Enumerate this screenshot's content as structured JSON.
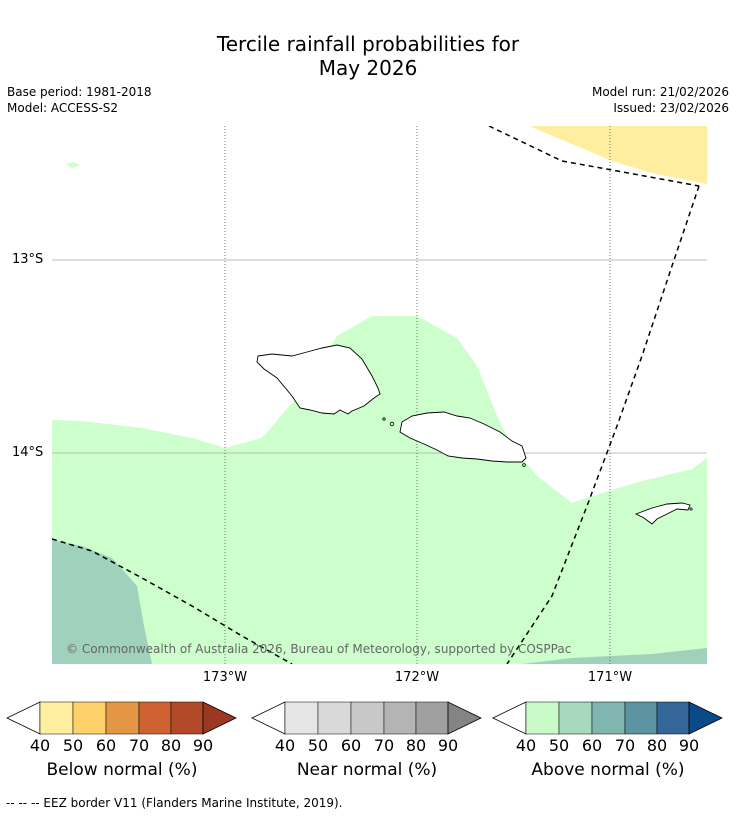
{
  "title_line1": "Tercile rainfall probabilities for",
  "title_line2": "May 2026",
  "base_period": "Base period: 1981-2018",
  "model": "Model: ACCESS-S2",
  "model_run": "Model run: 21/02/2026",
  "issued": "Issued: 23/02/2026",
  "copyright": "© Commonwealth of Australia 2026, Bureau of Meteorology, supported by COSPPac",
  "lon_labels": [
    "173°W",
    "172°W",
    "171°W"
  ],
  "lat_labels": [
    "13°S",
    "14°S"
  ],
  "colorbars": [
    {
      "title": "Below normal (%)",
      "ticks": [
        "40",
        "50",
        "60",
        "70",
        "80",
        "90"
      ],
      "colors": [
        "#ffffff",
        "#ffeda0",
        "#fed16a",
        "#e39646",
        "#cf6231",
        "#b24a29",
        "#9a3822"
      ]
    },
    {
      "title": "Near normal (%)",
      "ticks": [
        "40",
        "50",
        "60",
        "70",
        "80",
        "90"
      ],
      "colors": [
        "#ffffff",
        "#e6e6e6",
        "#d9d9d9",
        "#c8c8c8",
        "#b4b4b4",
        "#a0a0a0",
        "#848484"
      ]
    },
    {
      "title": "Above normal (%)",
      "ticks": [
        "40",
        "50",
        "60",
        "70",
        "80",
        "90"
      ],
      "colors": [
        "#ffffff",
        "#c9fbc9",
        "#a8d8bd",
        "#80b5b0",
        "#5b94a3",
        "#336699",
        "#0b4a8a"
      ]
    }
  ],
  "footer": "--  --  -- EEZ border V11 (Flanders Marine Institute, 2019).",
  "colors": {
    "above_40": "#ccffcc",
    "above_50": "#a0d1bd",
    "below_40": "#ffeda0",
    "grid": "#808080"
  }
}
